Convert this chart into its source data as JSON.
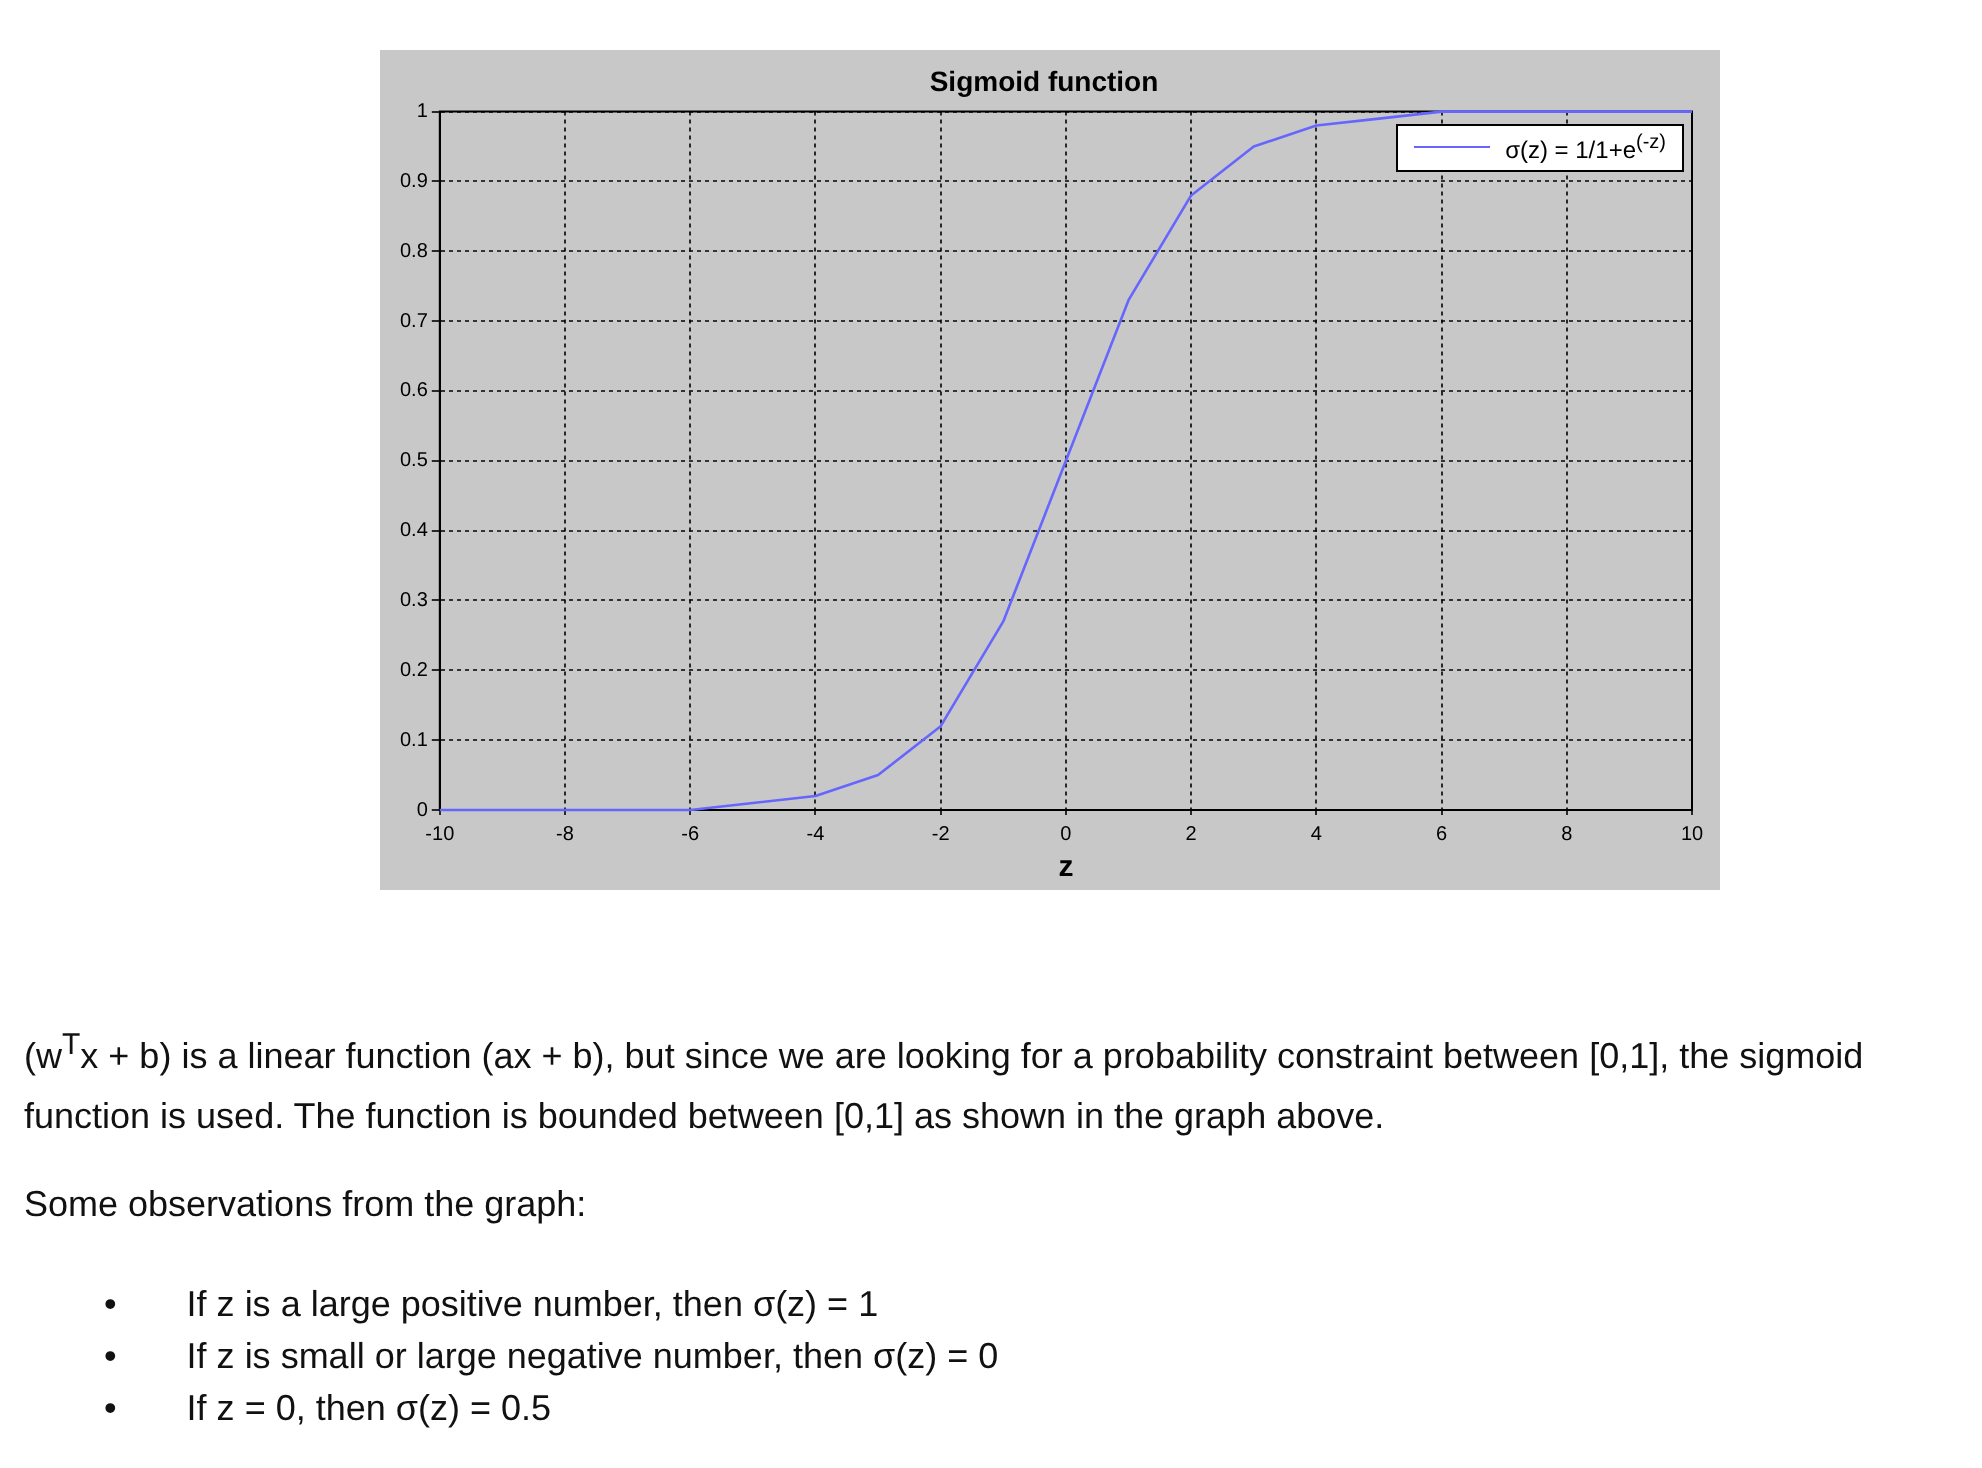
{
  "chart_data": {
    "type": "line",
    "title": "Sigmoid function",
    "xlabel": "z",
    "x": [
      -10,
      -9,
      -8,
      -7,
      -6,
      -5,
      -4,
      -3,
      -2,
      -1,
      0,
      1,
      2,
      3,
      4,
      5,
      6,
      7,
      8,
      9,
      10
    ],
    "series": [
      {
        "name": "σ(z) = 1/1+e$^{(-z)}$",
        "color": "#6666ff",
        "values": [
          0,
          0,
          0,
          0,
          0,
          0.01,
          0.02,
          0.05,
          0.12,
          0.27,
          0.5,
          0.73,
          0.88,
          0.95,
          0.98,
          0.99,
          1,
          1,
          1,
          1,
          1
        ]
      }
    ],
    "xlim": [
      -10,
      10
    ],
    "xticks": [
      -10,
      -8,
      -6,
      -4,
      -2,
      0,
      2,
      4,
      6,
      8,
      10
    ],
    "ylim": [
      0,
      1
    ],
    "yticks": [
      0,
      0.1,
      0.2,
      0.3,
      0.4,
      0.5,
      0.6,
      0.7,
      0.8,
      0.9,
      1
    ],
    "grid": true,
    "legend": "top right",
    "marker": "none",
    "line_style": "solid",
    "annotations": [
      "(w$^{T}$x + b)  is a linear function (ax + b), but since we are looking for a probability constraint between [0,1], the sigmoid function is used. The function is bounded between [0,1] as shown in the graph above.",
      "Some observations from the graph:",
      "•       If z is a large positive number, then σ(z) = 1",
      "•       If z is small or large negative number, then σ(z) = 0",
      "•       If z = 0, then σ(z) = 0.5"
    ]
  }
}
